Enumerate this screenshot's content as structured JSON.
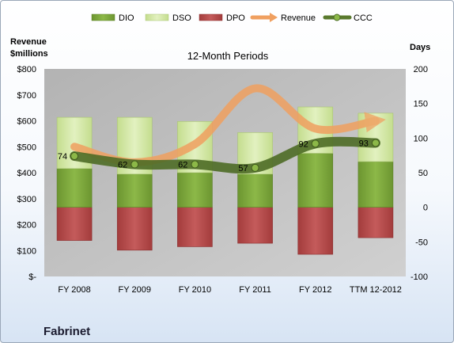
{
  "chart_data": {
    "type": "bar",
    "title": "12-Month Periods",
    "company": "Fabrinet",
    "left_axis": {
      "title_lines": [
        "Revenue",
        "$millions"
      ],
      "ylim": [
        0,
        800
      ],
      "ticks": [
        0,
        100,
        200,
        300,
        400,
        500,
        600,
        700,
        800
      ],
      "tick_labels": [
        "$-",
        "$100",
        "$200",
        "$300",
        "$400",
        "$500",
        "$600",
        "$700",
        "$800"
      ]
    },
    "right_axis": {
      "title": "Days",
      "ylim": [
        -100,
        200
      ],
      "ticks": [
        -100,
        -50,
        0,
        50,
        100,
        150,
        200
      ],
      "tick_labels": [
        "-100",
        "-50",
        "0",
        "50",
        "100",
        "150",
        "200"
      ]
    },
    "categories": [
      "FY 2008",
      "FY 2009",
      "FY 2010",
      "FY 2011",
      "FY 2012",
      "TTM 12-2012"
    ],
    "legend": {
      "position": "top",
      "entries": [
        "DIO",
        "DSO",
        "DPO",
        "Revenue",
        "CCC"
      ]
    },
    "series": [
      {
        "name": "DIO",
        "type": "bar",
        "axis": "right",
        "values": [
          56,
          48,
          50,
          48,
          78,
          66
        ]
      },
      {
        "name": "DSO",
        "type": "bar",
        "axis": "right",
        "values": [
          74,
          82,
          74,
          60,
          67,
          70
        ]
      },
      {
        "name": "DPO",
        "type": "bar",
        "axis": "right",
        "values": [
          -48,
          -62,
          -57,
          -52,
          -68,
          -44
        ]
      },
      {
        "name": "Revenue",
        "type": "line",
        "axis": "left",
        "values": [
          500,
          440,
          510,
          725,
          570,
          600
        ]
      },
      {
        "name": "CCC",
        "type": "line",
        "axis": "right",
        "values": [
          74,
          62,
          62,
          57,
          92,
          93
        ],
        "labels": [
          "74",
          "62",
          "62",
          "57",
          "92",
          "93"
        ]
      }
    ],
    "colors": {
      "DIO": "#7aa33a",
      "DSO": "#d3e8a6",
      "DPO": "#b84a4a",
      "Revenue": "#f0a060",
      "CCC": "#5a7a2e",
      "plot_bg": "#bfbfbf"
    },
    "grid": false
  }
}
